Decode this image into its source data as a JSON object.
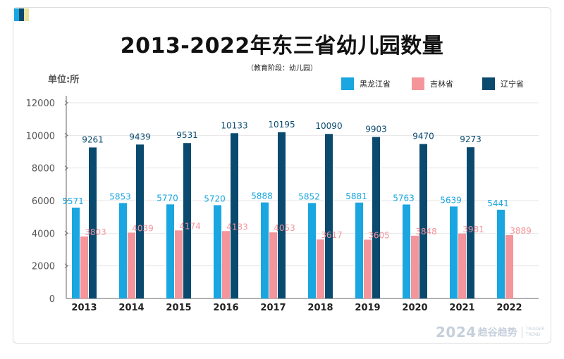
{
  "header": {
    "title": "2013-2022年东三省幼儿园数量",
    "subtitle": "（教育阶段：幼儿园）",
    "unit": "单位:所"
  },
  "watermark": {
    "year": "2024",
    "name": "趋谷趋势",
    "sub_line1": "TRIGGER",
    "sub_line2": "TREND"
  },
  "colors": {
    "heilongjiang": "#1aa6e0",
    "jilin": "#f4959b",
    "liaoning": "#0a4a6e",
    "axis": "#666666",
    "grid": "#e6e6e6",
    "corner_blue": "#1aa6e0",
    "corner_navy": "#0a4a6e",
    "corner_yellow": "#e9e2a0"
  },
  "chart_data": {
    "type": "bar",
    "title": "2013-2022年东三省幼儿园数量",
    "ylabel": "单位:所",
    "ylim": [
      0,
      12000
    ],
    "yticks": [
      0,
      2000,
      4000,
      6000,
      8000,
      10000,
      12000
    ],
    "grid": true,
    "legend_position": "top-right",
    "categories": [
      "2013",
      "2014",
      "2015",
      "2016",
      "2017",
      "2018",
      "2019",
      "2020",
      "2021",
      "2022"
    ],
    "series": [
      {
        "name": "黑龙江省",
        "values": [
          5571,
          5853,
          5770,
          5720,
          5888,
          5852,
          5881,
          5763,
          5639,
          5441
        ]
      },
      {
        "name": "吉林省",
        "values": [
          3803,
          4039,
          4174,
          4133,
          4053,
          3617,
          3605,
          3848,
          3981,
          3889
        ]
      },
      {
        "name": "辽宁省",
        "values": [
          9261,
          9439,
          9531,
          10133,
          10195,
          10090,
          9903,
          9470,
          9273,
          null
        ]
      }
    ]
  }
}
